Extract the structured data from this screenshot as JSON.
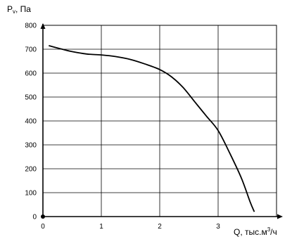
{
  "chart_data": {
    "type": "line",
    "title": "",
    "ylabel": {
      "main": "P",
      "sub": "v",
      "rest": ", Па"
    },
    "xlabel": {
      "main": "Q, тыс.м",
      "sup": "3",
      "rest": "/ч"
    },
    "xlim": [
      0,
      4
    ],
    "ylim": [
      0,
      800
    ],
    "xticks": [
      0,
      1,
      2,
      3
    ],
    "yticks": [
      0,
      100,
      200,
      300,
      400,
      500,
      600,
      700,
      800
    ],
    "grid": true,
    "series": [
      {
        "color": "#000000",
        "points": [
          [
            0.1,
            715
          ],
          [
            0.3,
            702
          ],
          [
            0.5,
            690
          ],
          [
            0.75,
            680
          ],
          [
            1.0,
            676
          ],
          [
            1.25,
            669
          ],
          [
            1.5,
            657
          ],
          [
            1.75,
            638
          ],
          [
            2.0,
            615
          ],
          [
            2.2,
            585
          ],
          [
            2.4,
            540
          ],
          [
            2.6,
            480
          ],
          [
            2.8,
            420
          ],
          [
            3.0,
            360
          ],
          [
            3.2,
            265
          ],
          [
            3.4,
            160
          ],
          [
            3.55,
            60
          ],
          [
            3.62,
            20
          ]
        ]
      }
    ]
  }
}
